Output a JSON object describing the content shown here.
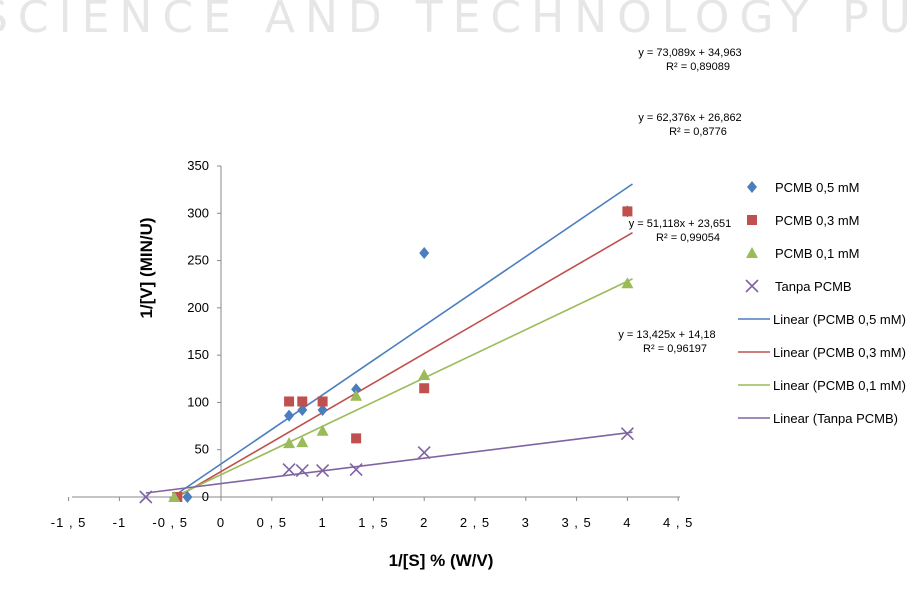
{
  "watermark": "SCIENCE AND TECHNOLOGY PUBLICATIONS",
  "chart_data": {
    "type": "scatter",
    "xlabel": "1/[S] % (W/V)",
    "ylabel": "1/[V] (MIN/U)",
    "xlim": [
      -1.5,
      4.5
    ],
    "ylim": [
      0,
      350
    ],
    "x_ticks": [
      "-1,5",
      "-1",
      "-0,5",
      "0",
      "0,5",
      "1",
      "1,5",
      "2",
      "2,5",
      "3",
      "3,5",
      "4",
      "4,5"
    ],
    "y_ticks": [
      "0",
      "50",
      "100",
      "150",
      "200",
      "250",
      "300",
      "350"
    ],
    "grid": false,
    "legend_position": "right",
    "series": [
      {
        "name": "PCMB 0,5 mM",
        "color": "#4a7ebf",
        "marker": "diamond",
        "points": [
          [
            -0.33,
            0
          ],
          [
            0.67,
            86
          ],
          [
            0.8,
            92
          ],
          [
            1,
            92
          ],
          [
            1.33,
            114
          ],
          [
            2,
            258
          ],
          [
            4,
            302
          ]
        ]
      },
      {
        "name": "PCMB 0,3 mM",
        "color": "#c0504d",
        "marker": "square",
        "points": [
          [
            -0.43,
            0
          ],
          [
            0.67,
            101
          ],
          [
            0.8,
            101
          ],
          [
            1,
            101
          ],
          [
            1.33,
            62
          ],
          [
            2,
            115
          ],
          [
            4,
            302
          ]
        ]
      },
      {
        "name": "PCMB 0,1 mM",
        "color": "#9bbb59",
        "marker": "triangle",
        "points": [
          [
            -0.46,
            0
          ],
          [
            0.67,
            57
          ],
          [
            0.8,
            58
          ],
          [
            1,
            70
          ],
          [
            1.33,
            107
          ],
          [
            2,
            129
          ],
          [
            4,
            226
          ]
        ]
      },
      {
        "name": "Tanpa PCMB",
        "color": "#8064a2",
        "marker": "x",
        "points": [
          [
            -0.74,
            0
          ],
          [
            0.67,
            29
          ],
          [
            0.8,
            28
          ],
          [
            1,
            28
          ],
          [
            1.33,
            29
          ],
          [
            2,
            47
          ],
          [
            4,
            67
          ]
        ]
      }
    ],
    "trendlines": [
      {
        "name": "Linear  (PCMB 0,5 mM)",
        "color": "#4a7ebf",
        "slope": 73.089,
        "intercept": 34.963,
        "x_range": [
          -0.48,
          4.05
        ],
        "equation": "y = 73,089x + 34,963",
        "r2": "R² = 0,89089"
      },
      {
        "name": "Linear  (PCMB 0,3 mM)",
        "color": "#c0504d",
        "slope": 62.376,
        "intercept": 26.862,
        "x_range": [
          -0.43,
          4.05
        ],
        "equation": "y = 62,376x + 26,862",
        "r2": "R² = 0,8776"
      },
      {
        "name": "Linear  (PCMB 0,1 mM)",
        "color": "#9bbb59",
        "slope": 51.118,
        "intercept": 23.651,
        "x_range": [
          -0.46,
          4.05
        ],
        "equation": "y = 51,118x + 23,651",
        "r2": "R² = 0,99054"
      },
      {
        "name": "Linear  (Tanpa PCMB)",
        "color": "#8064a2",
        "slope": 13.425,
        "intercept": 14.18,
        "x_range": [
          -0.74,
          4.05
        ],
        "equation": "y = 13,425x + 14,18",
        "r2": "R² = 0,96197"
      }
    ]
  }
}
